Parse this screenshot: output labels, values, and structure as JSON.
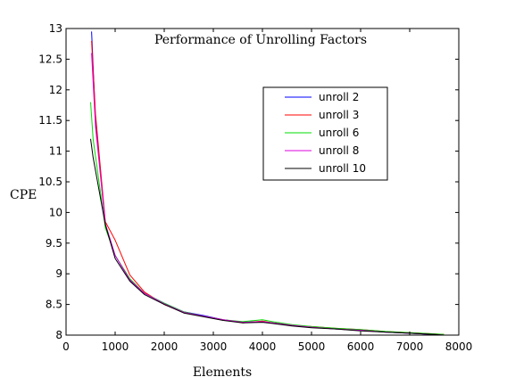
{
  "chart_data": {
    "type": "line",
    "title": "Performance of Unrolling Factors",
    "xlabel": "Elements",
    "ylabel": "CPE",
    "xlim": [
      0,
      8000
    ],
    "ylim": [
      8,
      13
    ],
    "xticks": [
      0,
      1000,
      2000,
      3000,
      4000,
      5000,
      6000,
      7000,
      8000
    ],
    "yticks": [
      8,
      8.5,
      9,
      9.5,
      10,
      10.5,
      11,
      11.5,
      12,
      12.5,
      13
    ],
    "legend_position": "upper-right",
    "grid": false,
    "series": [
      {
        "name": "unroll 2",
        "color": "#0000ff",
        "x": [
          520,
          600,
          800,
          1000,
          1300,
          1600,
          2000,
          2400,
          2800,
          3200,
          3600,
          4000,
          4200,
          4600,
          5000,
          5500,
          6000,
          6500,
          7000,
          7500,
          7700
        ],
        "y": [
          12.95,
          11.5,
          9.8,
          9.3,
          8.9,
          8.68,
          8.52,
          8.38,
          8.32,
          8.25,
          8.21,
          8.22,
          8.2,
          8.16,
          8.13,
          8.1,
          8.08,
          8.05,
          8.03,
          8.01,
          8.0
        ]
      },
      {
        "name": "unroll 3",
        "color": "#ff0000",
        "x": [
          520,
          600,
          800,
          1000,
          1300,
          1600,
          2000,
          2400,
          2800,
          3200,
          3600,
          4000,
          4200,
          4600,
          5000,
          5500,
          6000,
          6500,
          7000,
          7500,
          7700
        ],
        "y": [
          12.8,
          11.6,
          9.85,
          9.55,
          8.98,
          8.7,
          8.5,
          8.37,
          8.31,
          8.25,
          8.2,
          8.23,
          8.2,
          8.16,
          8.14,
          8.11,
          8.09,
          8.06,
          8.04,
          8.02,
          8.01
        ]
      },
      {
        "name": "unroll 6",
        "color": "#00dd00",
        "x": [
          500,
          550,
          800,
          1000,
          1300,
          1600,
          2000,
          2400,
          2800,
          3200,
          3600,
          4000,
          4200,
          4600,
          5000,
          5500,
          6000,
          6500,
          7000,
          7500,
          7700
        ],
        "y": [
          11.8,
          11.2,
          9.75,
          9.3,
          8.92,
          8.68,
          8.52,
          8.38,
          8.31,
          8.25,
          8.22,
          8.25,
          8.22,
          8.17,
          8.14,
          8.11,
          8.09,
          8.06,
          8.04,
          8.02,
          8.01
        ]
      },
      {
        "name": "unroll 8",
        "color": "#dd00dd",
        "x": [
          520,
          600,
          800,
          1000,
          1300,
          1600,
          2000,
          2400,
          2800,
          3200,
          3600,
          4000,
          4200,
          4600,
          5000,
          5500,
          6000,
          6500,
          7000,
          7500,
          7700
        ],
        "y": [
          12.6,
          11.4,
          9.82,
          9.3,
          8.9,
          8.68,
          8.51,
          8.37,
          8.31,
          8.25,
          8.21,
          8.22,
          8.2,
          8.16,
          8.13,
          8.1,
          8.08,
          8.05,
          8.03,
          8.01,
          8.0
        ]
      },
      {
        "name": "unroll 10",
        "color": "#000000",
        "x": [
          500,
          550,
          800,
          1000,
          1300,
          1600,
          2000,
          2400,
          2800,
          3200,
          3600,
          4000,
          4200,
          4600,
          5000,
          5500,
          6000,
          6500,
          7000,
          7500,
          7700
        ],
        "y": [
          11.2,
          10.9,
          9.8,
          9.25,
          8.88,
          8.66,
          8.5,
          8.36,
          8.3,
          8.24,
          8.2,
          8.21,
          8.19,
          8.15,
          8.12,
          8.1,
          8.07,
          8.05,
          8.03,
          8.01,
          8.0
        ]
      }
    ]
  }
}
